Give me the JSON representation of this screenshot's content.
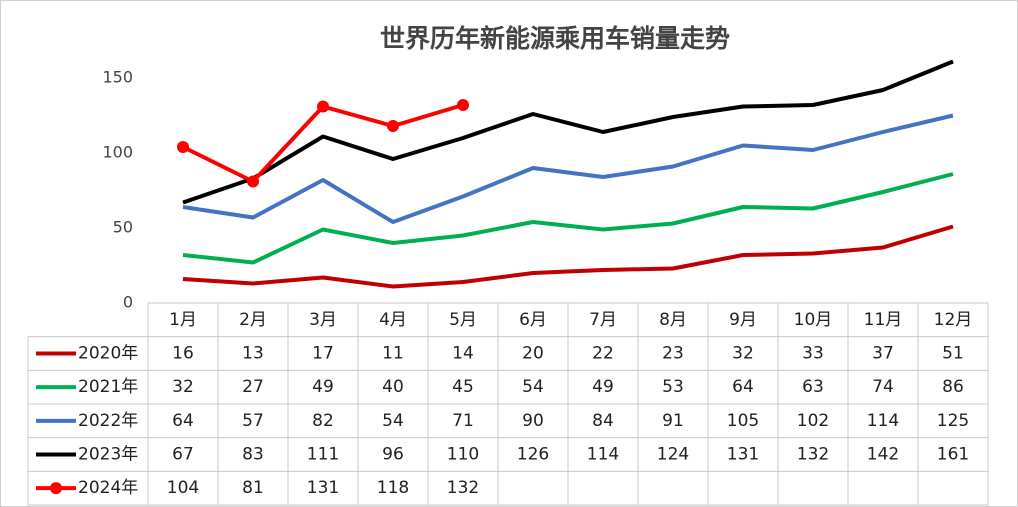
{
  "chart_data": {
    "type": "line",
    "title": "世界历年新能源乘用车销量走势",
    "categories": [
      "1月",
      "2月",
      "3月",
      "4月",
      "5月",
      "6月",
      "7月",
      "8月",
      "9月",
      "10月",
      "11月",
      "12月"
    ],
    "series": [
      {
        "name": "2020年",
        "color": "#c00000",
        "values": [
          16,
          13,
          17,
          11,
          14,
          20,
          22,
          23,
          32,
          33,
          37,
          51
        ]
      },
      {
        "name": "2021年",
        "color": "#00b050",
        "values": [
          32,
          27,
          49,
          40,
          45,
          54,
          49,
          53,
          64,
          63,
          74,
          86
        ]
      },
      {
        "name": "2022年",
        "color": "#4472c4",
        "values": [
          64,
          57,
          82,
          54,
          71,
          90,
          84,
          91,
          105,
          102,
          114,
          125
        ]
      },
      {
        "name": "2023年",
        "color": "#000000",
        "values": [
          67,
          83,
          111,
          96,
          110,
          126,
          114,
          124,
          131,
          132,
          142,
          161
        ]
      },
      {
        "name": "2024年",
        "color": "#ff0000",
        "markers": true,
        "values": [
          104,
          81,
          131,
          118,
          132,
          null,
          null,
          null,
          null,
          null,
          null,
          null
        ]
      }
    ],
    "ylim": [
      0,
      170
    ],
    "yticks": [
      0,
      50,
      100,
      150
    ],
    "grid": false
  }
}
